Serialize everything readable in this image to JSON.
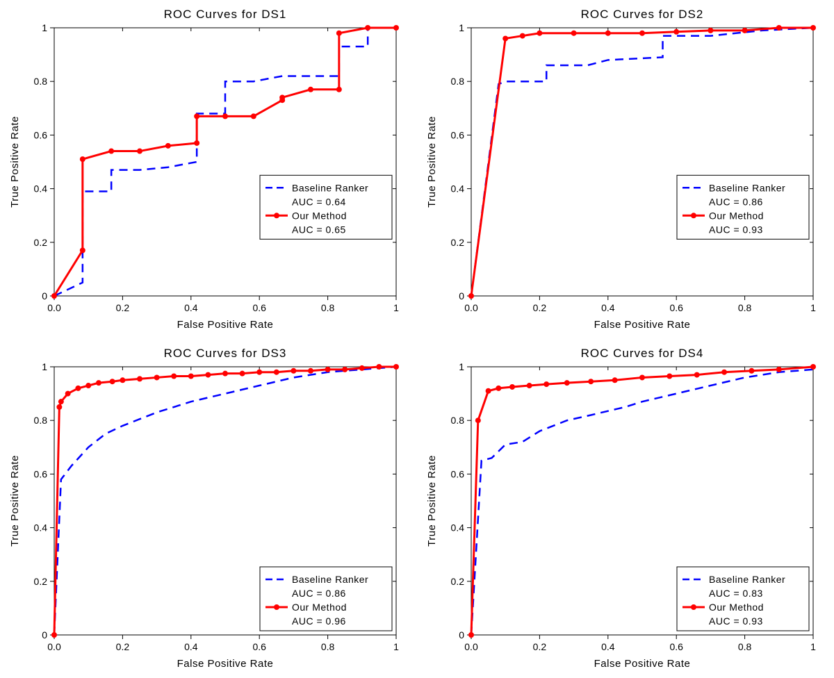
{
  "global": {
    "background_color": "#ffffff",
    "axis_color": "#000000",
    "font_family": "Arial",
    "title_fontsize": 17,
    "label_fontsize": 15,
    "tick_fontsize": 14,
    "legend_fontsize": 14
  },
  "panels": [
    {
      "id": "ds1",
      "title": "ROC Curves for DS1",
      "xlabel": "False Positive Rate",
      "ylabel": "True Positive Rate",
      "xlim": [
        0,
        1
      ],
      "ylim": [
        0,
        1
      ],
      "xtick_step": 0.2,
      "ytick_step": 0.2,
      "series": [
        {
          "name": "Baseline Ranker",
          "legend_lines": [
            "Baseline Ranker",
            "AUC = 0.64"
          ],
          "color": "#0000ff",
          "style": "dashed",
          "marker": "none",
          "line_width": 2.5,
          "dash": "12,8",
          "x": [
            0,
            0.083,
            0.083,
            0.167,
            0.167,
            0.25,
            0.333,
            0.417,
            0.417,
            0.5,
            0.5,
            0.583,
            0.667,
            0.75,
            0.833,
            0.833,
            0.917,
            0.917,
            1,
            1
          ],
          "y": [
            0,
            0.05,
            0.39,
            0.39,
            0.47,
            0.47,
            0.48,
            0.5,
            0.68,
            0.68,
            0.8,
            0.8,
            0.82,
            0.82,
            0.82,
            0.93,
            0.93,
            1,
            1,
            1
          ]
        },
        {
          "name": "Our Method",
          "legend_lines": [
            "Our Method",
            "AUC = 0.65"
          ],
          "color": "#ff0000",
          "style": "solid",
          "marker": "circle",
          "marker_size": 4,
          "line_width": 3,
          "x": [
            0,
            0.083,
            0.083,
            0.167,
            0.25,
            0.333,
            0.417,
            0.417,
            0.5,
            0.583,
            0.667,
            0.667,
            0.75,
            0.833,
            0.833,
            0.917,
            1
          ],
          "y": [
            0,
            0.17,
            0.51,
            0.54,
            0.54,
            0.56,
            0.57,
            0.67,
            0.67,
            0.67,
            0.73,
            0.74,
            0.77,
            0.77,
            0.98,
            1,
            1
          ]
        }
      ],
      "legend_pos": "right-mid"
    },
    {
      "id": "ds2",
      "title": "ROC Curves for DS2",
      "xlabel": "False Positive Rate",
      "ylabel": "True Positive Rate",
      "xlim": [
        0,
        1
      ],
      "ylim": [
        0,
        1
      ],
      "xtick_step": 0.2,
      "ytick_step": 0.2,
      "series": [
        {
          "name": "Baseline Ranker",
          "legend_lines": [
            "Baseline Ranker",
            "AUC = 0.86"
          ],
          "color": "#0000ff",
          "style": "dashed",
          "marker": "none",
          "line_width": 2.5,
          "dash": "12,8",
          "x": [
            0,
            0.08,
            0.1,
            0.22,
            0.22,
            0.34,
            0.4,
            0.56,
            0.56,
            0.7,
            0.85,
            1
          ],
          "y": [
            0,
            0.79,
            0.8,
            0.8,
            0.86,
            0.86,
            0.88,
            0.89,
            0.97,
            0.97,
            0.99,
            1
          ]
        },
        {
          "name": "Our Method",
          "legend_lines": [
            "Our Method",
            "AUC = 0.93"
          ],
          "color": "#ff0000",
          "style": "solid",
          "marker": "circle",
          "marker_size": 4,
          "line_width": 3,
          "x": [
            0,
            0.1,
            0.15,
            0.2,
            0.3,
            0.4,
            0.5,
            0.6,
            0.7,
            0.8,
            0.9,
            1
          ],
          "y": [
            0,
            0.96,
            0.97,
            0.98,
            0.98,
            0.98,
            0.98,
            0.985,
            0.99,
            0.99,
            1,
            1
          ]
        }
      ],
      "legend_pos": "right-mid"
    },
    {
      "id": "ds3",
      "title": "ROC Curves for DS3",
      "xlabel": "False Positive Rate",
      "ylabel": "True Positive Rate",
      "xlim": [
        0,
        1
      ],
      "ylim": [
        0,
        1
      ],
      "xtick_step": 0.2,
      "ytick_step": 0.2,
      "series": [
        {
          "name": "Baseline Ranker",
          "legend_lines": [
            "Baseline Ranker",
            "AUC = 0.86"
          ],
          "color": "#0000ff",
          "style": "dashed",
          "marker": "none",
          "line_width": 2.5,
          "dash": "12,8",
          "x": [
            0,
            0.02,
            0.05,
            0.1,
            0.15,
            0.2,
            0.3,
            0.4,
            0.5,
            0.6,
            0.7,
            0.8,
            0.9,
            1
          ],
          "y": [
            0,
            0.58,
            0.63,
            0.7,
            0.75,
            0.78,
            0.83,
            0.87,
            0.9,
            0.93,
            0.96,
            0.98,
            0.99,
            1
          ]
        },
        {
          "name": "Our Method",
          "legend_lines": [
            "Our Method",
            "AUC = 0.96"
          ],
          "color": "#ff0000",
          "style": "solid",
          "marker": "circle",
          "marker_size": 4,
          "line_width": 3,
          "x": [
            0,
            0.015,
            0.02,
            0.04,
            0.07,
            0.1,
            0.13,
            0.17,
            0.2,
            0.25,
            0.3,
            0.35,
            0.4,
            0.45,
            0.5,
            0.55,
            0.6,
            0.65,
            0.7,
            0.75,
            0.8,
            0.85,
            0.9,
            0.95,
            1
          ],
          "y": [
            0,
            0.85,
            0.87,
            0.9,
            0.92,
            0.93,
            0.94,
            0.945,
            0.95,
            0.955,
            0.96,
            0.965,
            0.965,
            0.97,
            0.975,
            0.975,
            0.98,
            0.98,
            0.985,
            0.985,
            0.99,
            0.99,
            0.995,
            1,
            1
          ]
        }
      ],
      "legend_pos": "right-bottom"
    },
    {
      "id": "ds4",
      "title": "ROC Curves for DS4",
      "xlabel": "False Positive Rate",
      "ylabel": "True Positive Rate",
      "xlim": [
        0,
        1
      ],
      "ylim": [
        0,
        1
      ],
      "xtick_step": 0.2,
      "ytick_step": 0.2,
      "series": [
        {
          "name": "Baseline Ranker",
          "legend_lines": [
            "Baseline Ranker",
            "AUC = 0.83"
          ],
          "color": "#0000ff",
          "style": "dashed",
          "marker": "none",
          "line_width": 2.5,
          "dash": "12,8",
          "x": [
            0,
            0.03,
            0.06,
            0.1,
            0.15,
            0.2,
            0.28,
            0.35,
            0.45,
            0.5,
            0.6,
            0.7,
            0.8,
            0.9,
            1
          ],
          "y": [
            0,
            0.65,
            0.66,
            0.71,
            0.72,
            0.76,
            0.8,
            0.82,
            0.85,
            0.87,
            0.9,
            0.93,
            0.96,
            0.98,
            0.99
          ]
        },
        {
          "name": "Our Method",
          "legend_lines": [
            "Our Method",
            "AUC = 0.93"
          ],
          "color": "#ff0000",
          "style": "solid",
          "marker": "circle",
          "marker_size": 4,
          "line_width": 3,
          "x": [
            0,
            0.02,
            0.05,
            0.08,
            0.12,
            0.17,
            0.22,
            0.28,
            0.35,
            0.42,
            0.5,
            0.58,
            0.66,
            0.74,
            0.82,
            0.9,
            1
          ],
          "y": [
            0,
            0.8,
            0.91,
            0.92,
            0.925,
            0.93,
            0.935,
            0.94,
            0.945,
            0.95,
            0.96,
            0.965,
            0.97,
            0.98,
            0.985,
            0.99,
            1
          ]
        }
      ],
      "legend_pos": "right-bottom"
    }
  ]
}
